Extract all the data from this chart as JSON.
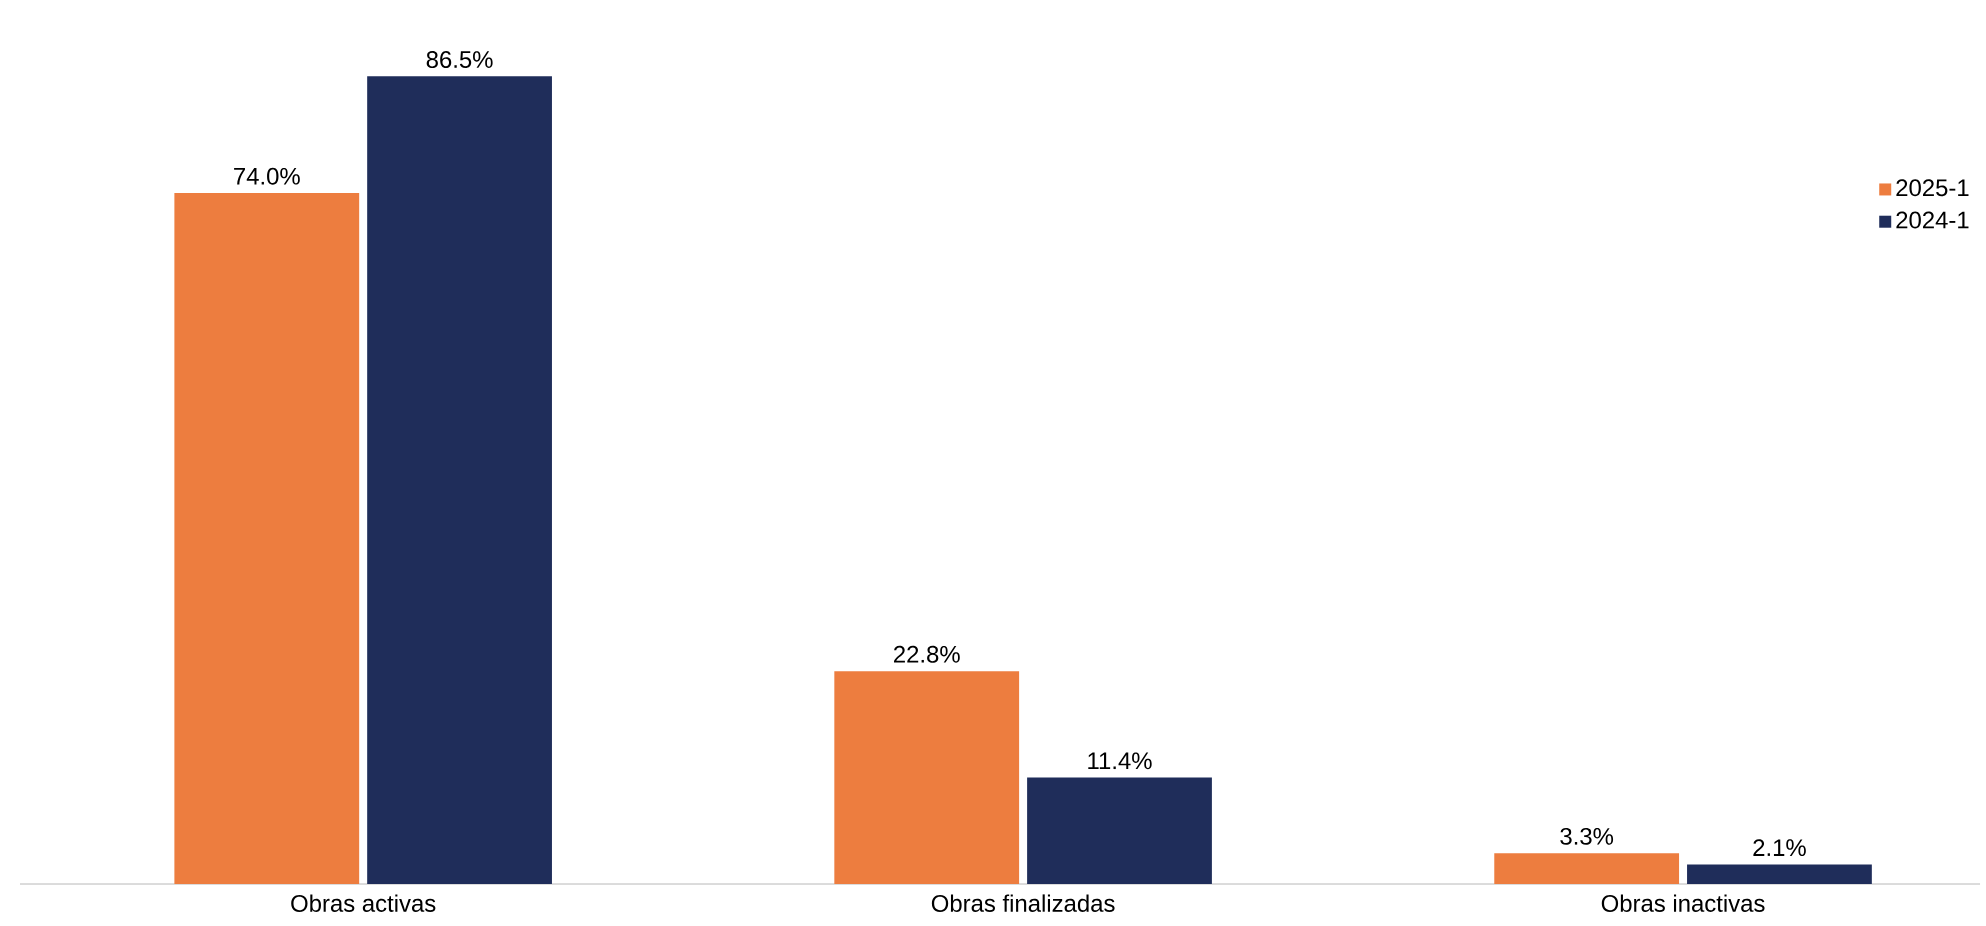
{
  "chart_data": {
    "type": "bar",
    "categories": [
      "Obras activas",
      "Obras finalizadas",
      "Obras inactivas"
    ],
    "series": [
      {
        "name": "2025-1",
        "color": "#ed7d3f",
        "values": [
          74.0,
          22.8,
          3.3
        ],
        "value_labels": [
          "74.0%",
          "22.8%",
          "3.3%"
        ]
      },
      {
        "name": "2024-1",
        "color": "#1f2d5a",
        "values": [
          86.5,
          11.4,
          2.1
        ],
        "value_labels": [
          "86.5%",
          "11.4%",
          "2.1%"
        ]
      }
    ],
    "legend": "right"
  }
}
